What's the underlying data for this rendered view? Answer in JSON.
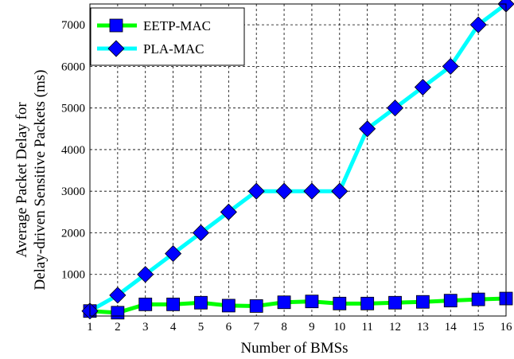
{
  "chart_data": {
    "type": "line",
    "title": "",
    "xlabel": "Number of BMSs",
    "ylabel_lines": [
      "Average Packet Delay for",
      "Delay-driven Sensitive Packets (ms)"
    ],
    "x": [
      1,
      2,
      3,
      4,
      5,
      6,
      7,
      8,
      9,
      10,
      11,
      12,
      13,
      14,
      15,
      16
    ],
    "xlim": [
      1,
      16
    ],
    "ylim": [
      0,
      7500
    ],
    "yticks": [
      1000,
      2000,
      3000,
      4000,
      5000,
      6000,
      7000
    ],
    "grid": true,
    "legend_position": "top-left",
    "series": [
      {
        "name": "EETP-MAC",
        "color": "#00ff00",
        "marker": "square",
        "marker_color": "#0000ff",
        "values": [
          120,
          80,
          280,
          280,
          320,
          250,
          240,
          330,
          350,
          300,
          300,
          320,
          340,
          370,
          400,
          420
        ]
      },
      {
        "name": "PLA-MAC",
        "color": "#00ffff",
        "marker": "diamond",
        "marker_color": "#0000ff",
        "values": [
          120,
          500,
          1000,
          1500,
          2000,
          2500,
          3000,
          3000,
          3000,
          3000,
          4500,
          5000,
          5500,
          6000,
          7000,
          7500
        ]
      }
    ]
  }
}
